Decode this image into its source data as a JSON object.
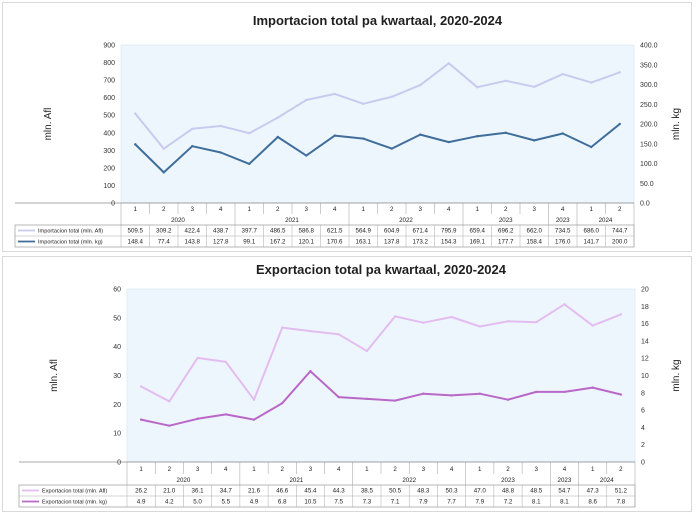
{
  "chart_data": [
    {
      "type": "line",
      "title": "Importacion total pa kwartaal, 2020-2024",
      "ylabel": "mln. Afl",
      "y2label": "mln. kg",
      "ylim": [
        0,
        900
      ],
      "yticks": [
        "0",
        "100",
        "200",
        "300",
        "400",
        "500",
        "600",
        "700",
        "800",
        "900"
      ],
      "y2lim": [
        0,
        400
      ],
      "y2ticks": [
        "0.0",
        "50.0",
        "100.0",
        "150.0",
        "200.0",
        "250.0",
        "300.0",
        "350.0",
        "400.0"
      ],
      "categories": [
        "1",
        "2",
        "3",
        "4",
        "1",
        "2",
        "3",
        "4",
        "1",
        "2",
        "3",
        "4",
        "1",
        "2",
        "3",
        "4",
        "1",
        "2"
      ],
      "year_groups": [
        {
          "label": "2020",
          "count": 4
        },
        {
          "label": "2021",
          "count": 4
        },
        {
          "label": "2022",
          "count": 4
        },
        {
          "label": "2023",
          "count": 3
        },
        {
          "label": "2023",
          "count": 1
        },
        {
          "label": "2024",
          "count": 2
        }
      ],
      "series": [
        {
          "name": "Importacion total (mln. Afl)",
          "axis": "left",
          "color": "#c8cbee",
          "labels": [
            "509.5",
            "309.2",
            "422.4",
            "438.7",
            "397.7",
            "486.5",
            "586.8",
            "621.5",
            "564.9",
            "604.9",
            "671.4",
            "795.9",
            "659.4",
            "696.2",
            "662.0",
            "734.5",
            "686.0",
            "744.7"
          ],
          "values": [
            509.5,
            309.2,
            422.4,
            438.7,
            397.7,
            486.5,
            586.8,
            621.5,
            564.9,
            604.9,
            671.4,
            795.9,
            659.4,
            696.2,
            662.0,
            734.5,
            686.0,
            744.7
          ]
        },
        {
          "name": "Importacion total (mln. kg)",
          "axis": "right",
          "color": "#3f6e9a",
          "labels": [
            "148.4",
            "77.4",
            "143.8",
            "127.8",
            "99.1",
            "167.2",
            "120.1",
            "170.6",
            "163.1",
            "137.8",
            "173.2",
            "154.3",
            "169.1",
            "177.7",
            "158.4",
            "176.0",
            "141.7",
            "200.0"
          ],
          "values": [
            148.4,
            77.4,
            143.8,
            127.8,
            99.1,
            167.2,
            120.1,
            170.6,
            163.1,
            137.8,
            173.2,
            154.3,
            169.1,
            177.7,
            158.4,
            176.0,
            141.7,
            200.0
          ]
        }
      ]
    },
    {
      "type": "line",
      "title": "Exportacion total pa kwartaal, 2020-2024",
      "ylabel": "mln. Afl",
      "y2label": "mln. kg",
      "ylim": [
        0,
        60
      ],
      "yticks": [
        "0",
        "10",
        "20",
        "30",
        "40",
        "50",
        "60"
      ],
      "y2lim": [
        0,
        20
      ],
      "y2ticks": [
        "0",
        "2",
        "4",
        "6",
        "8",
        "10",
        "12",
        "14",
        "16",
        "18",
        "20"
      ],
      "categories": [
        "1",
        "2",
        "3",
        "4",
        "1",
        "2",
        "3",
        "4",
        "1",
        "2",
        "3",
        "4",
        "1",
        "2",
        "3",
        "4",
        "1",
        "2"
      ],
      "year_groups": [
        {
          "label": "2020",
          "count": 4
        },
        {
          "label": "2021",
          "count": 4
        },
        {
          "label": "2022",
          "count": 4
        },
        {
          "label": "2023",
          "count": 3
        },
        {
          "label": "2023",
          "count": 1
        },
        {
          "label": "2024",
          "count": 2
        }
      ],
      "series": [
        {
          "name": "Exportacion total (mln. Afl)",
          "axis": "left",
          "color": "#e3bdf0",
          "labels": [
            "26.2",
            "21.0",
            "36.1",
            "34.7",
            "21.6",
            "46.6",
            "45.4",
            "44.3",
            "38.5",
            "50.5",
            "48.3",
            "50.3",
            "47.0",
            "48.8",
            "48.5",
            "54.7",
            "47.3",
            "51.2"
          ],
          "values": [
            26.2,
            21.0,
            36.1,
            34.7,
            21.6,
            46.6,
            45.4,
            44.3,
            38.5,
            50.5,
            48.3,
            50.3,
            47.0,
            48.8,
            48.5,
            54.7,
            47.3,
            51.2
          ]
        },
        {
          "name": "Exportacion total (mln. kg)",
          "axis": "right",
          "color": "#b968c8",
          "labels": [
            "4.9",
            "4.2",
            "5.0",
            "5.5",
            "4.9",
            "6.8",
            "10.5",
            "7.5",
            "7.3",
            "7.1",
            "7.9",
            "7.7",
            "7.9",
            "7.2",
            "8.1",
            "8.1",
            "8.6",
            "7.8"
          ],
          "values": [
            4.9,
            4.2,
            5.0,
            5.5,
            4.9,
            6.8,
            10.5,
            7.5,
            7.3,
            7.1,
            7.9,
            7.7,
            7.9,
            7.2,
            8.1,
            8.1,
            8.6,
            7.8
          ]
        }
      ]
    }
  ]
}
